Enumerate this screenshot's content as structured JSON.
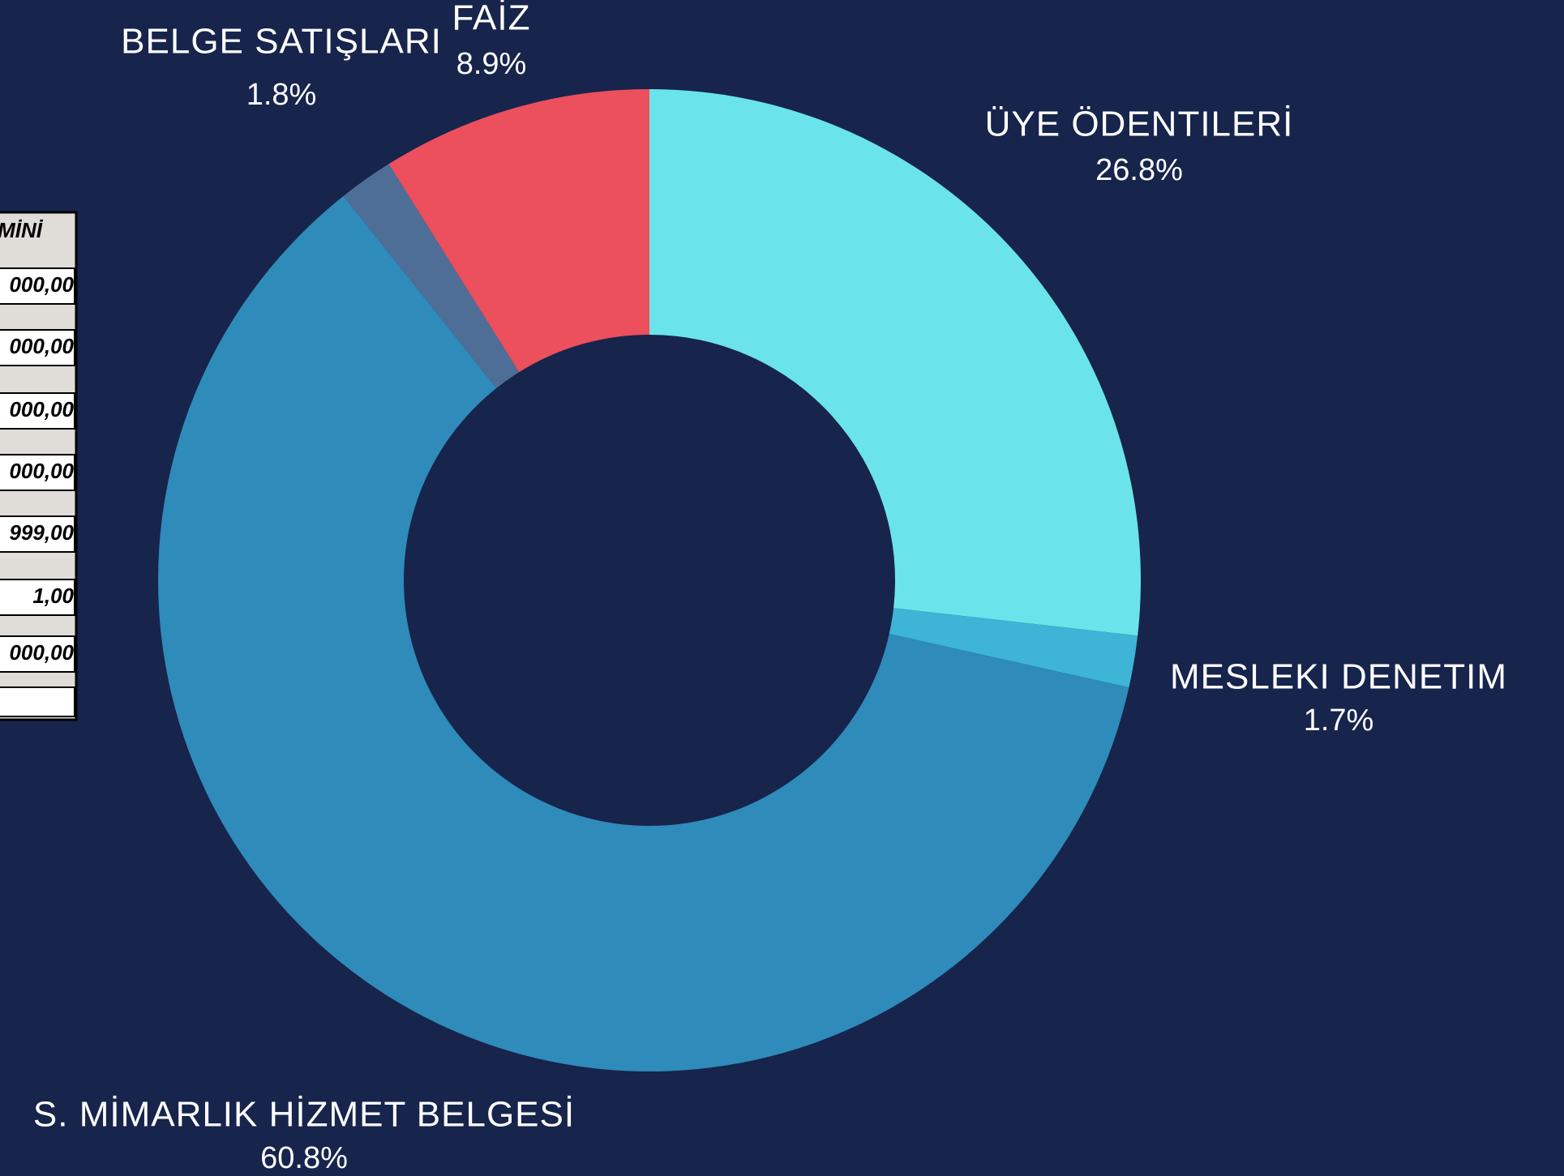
{
  "chart_data": {
    "type": "donut",
    "categories": [
      "ÜYE ÖDENTILERİ",
      "MESLEKI DENETIM",
      "S. MİMARLIK HİZMET BELGESİ",
      "BELGE SATIŞLARI",
      "FAİZ"
    ],
    "values": [
      26.8,
      1.7,
      60.8,
      1.8,
      8.9
    ],
    "value_labels": [
      "26.8%",
      "1.7%",
      "60.8%",
      "1.8%",
      "8.9%"
    ],
    "colors": [
      "#6ae4ea",
      "#3eb4d6",
      "#2e8bba",
      "#4e6e98",
      "#eb505c"
    ]
  },
  "table": {
    "header": "MİNİ",
    "rows": [
      "000,00",
      "000,00",
      "000,00",
      "000,00",
      "999,00",
      "1,00",
      "000,00"
    ]
  }
}
